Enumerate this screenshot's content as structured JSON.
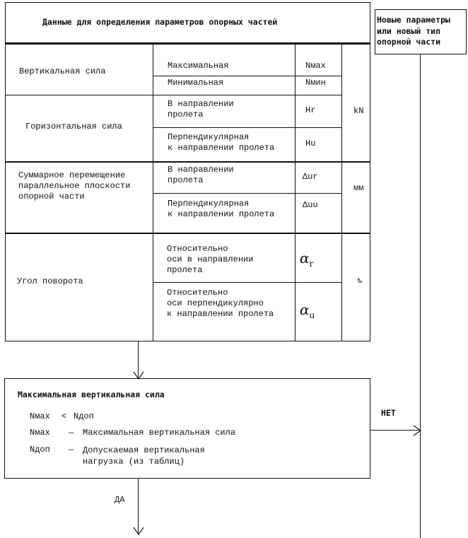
{
  "table": {
    "title": "Данные для определения параметров опорных частей",
    "rows": [
      {
        "group": "Вертикальная сила",
        "items": [
          {
            "label": "Максимальная",
            "symbol": "Nмax"
          },
          {
            "label": "Минимальная",
            "symbol": "Nмин"
          }
        ]
      },
      {
        "group": "Горизонтальная сила",
        "items": [
          {
            "label": "В направлении\nпролета",
            "symbol": "Hr"
          },
          {
            "label": "Перпендикулярная\nк направлении пролета",
            "symbol": "Hu"
          }
        ]
      },
      {
        "group": "Суммарное перемещение\nпараллельное плоскости\nопорной части",
        "items": [
          {
            "label": "В направлении\nпролета",
            "symbol": "Δur"
          },
          {
            "label": "Перпендикулярная\nк направлении пролета",
            "symbol": "Δuu"
          }
        ]
      },
      {
        "group": "Угол поворота",
        "items": [
          {
            "label": "Относительно\nоси в направлении\nпролета",
            "symbol": "α",
            "sub": "r"
          },
          {
            "label": "Относительно\nоси перпендикулярно\nк направлении пролета",
            "symbol": "α",
            "sub": "u"
          }
        ]
      }
    ],
    "units": [
      "kN",
      "мм",
      "‰"
    ]
  },
  "side_box": {
    "text": "Новые параметры\nили новый тип\nопорной части"
  },
  "check_box": {
    "title": "Максимальная вертикальная сила",
    "condition": {
      "left": "Nмax",
      "op": "<",
      "right": "Nдоп"
    },
    "legend": [
      {
        "symbol": "Nмax",
        "dash": "—",
        "text": "Максимальная вертикальная сила"
      },
      {
        "symbol": "Nдоп",
        "dash": "—",
        "text": "Допускаемая вертикальная\nнагрузка (из таблиц)"
      }
    ]
  },
  "branches": {
    "no": "НЕТ",
    "yes": "ДА"
  }
}
